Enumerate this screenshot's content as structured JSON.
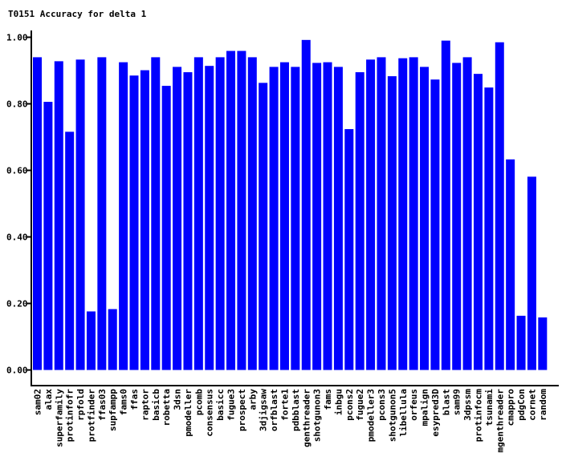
{
  "chart_data": {
    "type": "bar",
    "title": "T0151 Accuracy for delta 1",
    "xlabel": "",
    "ylabel": "",
    "ylim": [
      0,
      1
    ],
    "yticks": [
      "0.00",
      "0.20",
      "0.40",
      "0.60",
      "0.80",
      "1.00"
    ],
    "bar_color": "#0000ff",
    "grid": false,
    "categories": [
      "sam02",
      "alax",
      "superfamily",
      "protinfofr",
      "rpfold",
      "protfinder",
      "ffas03",
      "supfampp",
      "fams0",
      "ffas",
      "raptor",
      "basicb",
      "robetta",
      "3dsn",
      "pmodeller",
      "pcomb",
      "consensus",
      "basicc",
      "fugue3",
      "prospect",
      "arby",
      "3djigsaw",
      "orfblast",
      "forte1",
      "pdbblast",
      "genthreader",
      "shotgunon3",
      "fams",
      "inbgu",
      "pcons2",
      "fugue2",
      "pmodeller3",
      "pcons3",
      "shotgunon5",
      "libellula",
      "orfeus",
      "mpalign",
      "esypred3D",
      "blast",
      "sam99",
      "3dpssm",
      "protinfocm",
      "tsunami",
      "mgenthreader",
      "cmappro",
      "pdgCon",
      "cornet",
      "random"
    ],
    "values": [
      0.94,
      0.806,
      0.928,
      0.716,
      0.933,
      0.176,
      0.94,
      0.183,
      0.925,
      0.885,
      0.901,
      0.94,
      0.854,
      0.911,
      0.895,
      0.94,
      0.914,
      0.94,
      0.959,
      0.959,
      0.94,
      0.863,
      0.911,
      0.925,
      0.911,
      0.992,
      0.923,
      0.925,
      0.911,
      0.724,
      0.895,
      0.933,
      0.94,
      0.883,
      0.937,
      0.94,
      0.911,
      0.873,
      0.99,
      0.923,
      0.94,
      0.89,
      0.849,
      0.985,
      0.633,
      0.163,
      0.581,
      0.158
    ]
  }
}
